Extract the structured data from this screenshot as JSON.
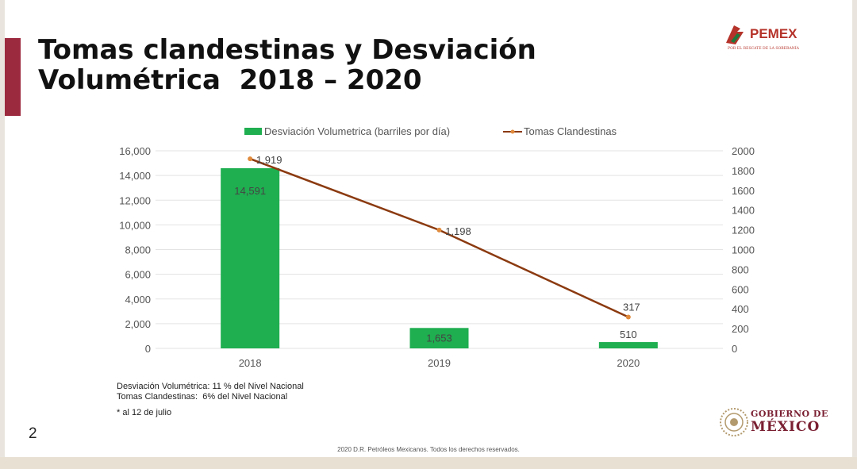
{
  "slide": {
    "title_line1": "Tomas clandestinas y Desviación",
    "title_line2": "Volumétrica  2018 – 2020",
    "page_number": "2",
    "footer": "2020 D.R. Petróleos Mexicanos. Todos los derechos reservados.",
    "notes": [
      "Desviación Volumétrica: 11 % del Nivel Nacional",
      "Tomas Clandestinas:  6% del Nivel Nacional"
    ],
    "footnote": "* al 12 de julio",
    "accent_color": "#9c2a3f"
  },
  "logos": {
    "pemex": {
      "name": "PEMEX",
      "tagline": "POR EL RESCATE DE LA SOBERANÍA",
      "icon": "pemex-eagle-icon",
      "color": "#b5332a"
    },
    "gobierno": {
      "line1": "GOBIERNO DE",
      "line2": "MÉXICO",
      "icon": "national-seal-icon",
      "color": "#7a1f32"
    }
  },
  "chart_data": {
    "type": "bar+line",
    "categories": [
      "2018",
      "2019",
      "2020"
    ],
    "series": [
      {
        "name": "Desviación Volumetrica (barriles por día)",
        "type": "bar",
        "axis": "left",
        "color": "#1fae50",
        "values": [
          14591,
          1653,
          510
        ],
        "labels": [
          "14,591",
          "1,653",
          "510"
        ]
      },
      {
        "name": "Tomas Clandestinas",
        "type": "line",
        "axis": "right",
        "color": "#8b3a10",
        "marker_color": "#e08a3c",
        "values": [
          1919,
          1198,
          317
        ],
        "labels": [
          "1,919",
          "1,198",
          "317"
        ]
      }
    ],
    "y_left": {
      "min": 0,
      "max": 16000,
      "ticks": [
        "0",
        "2,000",
        "4,000",
        "6,000",
        "8,000",
        "10,000",
        "12,000",
        "14,000",
        "16,000"
      ]
    },
    "y_right": {
      "min": 0,
      "max": 2000,
      "ticks": [
        "0",
        "200",
        "400",
        "600",
        "800",
        "1000",
        "1200",
        "1400",
        "1600",
        "1800",
        "2000"
      ]
    },
    "grid": true,
    "legend_position": "top"
  }
}
